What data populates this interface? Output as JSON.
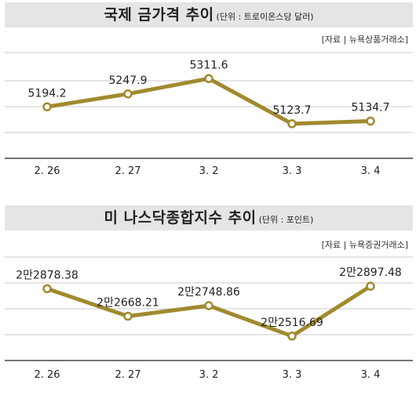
{
  "chart_data": [
    {
      "type": "line",
      "title": "국제 금가격 추이",
      "unit_note": "(단위 : 트로이온스당 달러)",
      "source": "[자료 | 뉴욕상품거래소]",
      "categories": [
        "2. 26",
        "2. 27",
        "3. 2",
        "3. 3",
        "3. 4"
      ],
      "values": [
        5194.2,
        5247.9,
        5311.6,
        5123.7,
        5134.7
      ],
      "labels": [
        "5194.2",
        "5247.9",
        "5311.6",
        "5123.7",
        "5134.7"
      ],
      "ylim": [
        4980,
        5420
      ],
      "grid": true,
      "color": "#a08a2e"
    },
    {
      "type": "line",
      "title": "미 나스닥종합지수 추이",
      "unit_note": "(단위 : 포인트)",
      "source": "[자료 | 뉴욕증권거래소]",
      "categories": [
        "2. 26",
        "2. 27",
        "3. 2",
        "3. 3",
        "3. 4"
      ],
      "values": [
        22878.38,
        22668.21,
        22748.86,
        22516.69,
        22897.48
      ],
      "labels": [
        "2만2878.38",
        "2만2668.21",
        "2만2748.86",
        "2만2516.69",
        "2만2897.48"
      ],
      "ylim": [
        22330,
        23120
      ],
      "grid": true,
      "color": "#a08a2e"
    }
  ]
}
